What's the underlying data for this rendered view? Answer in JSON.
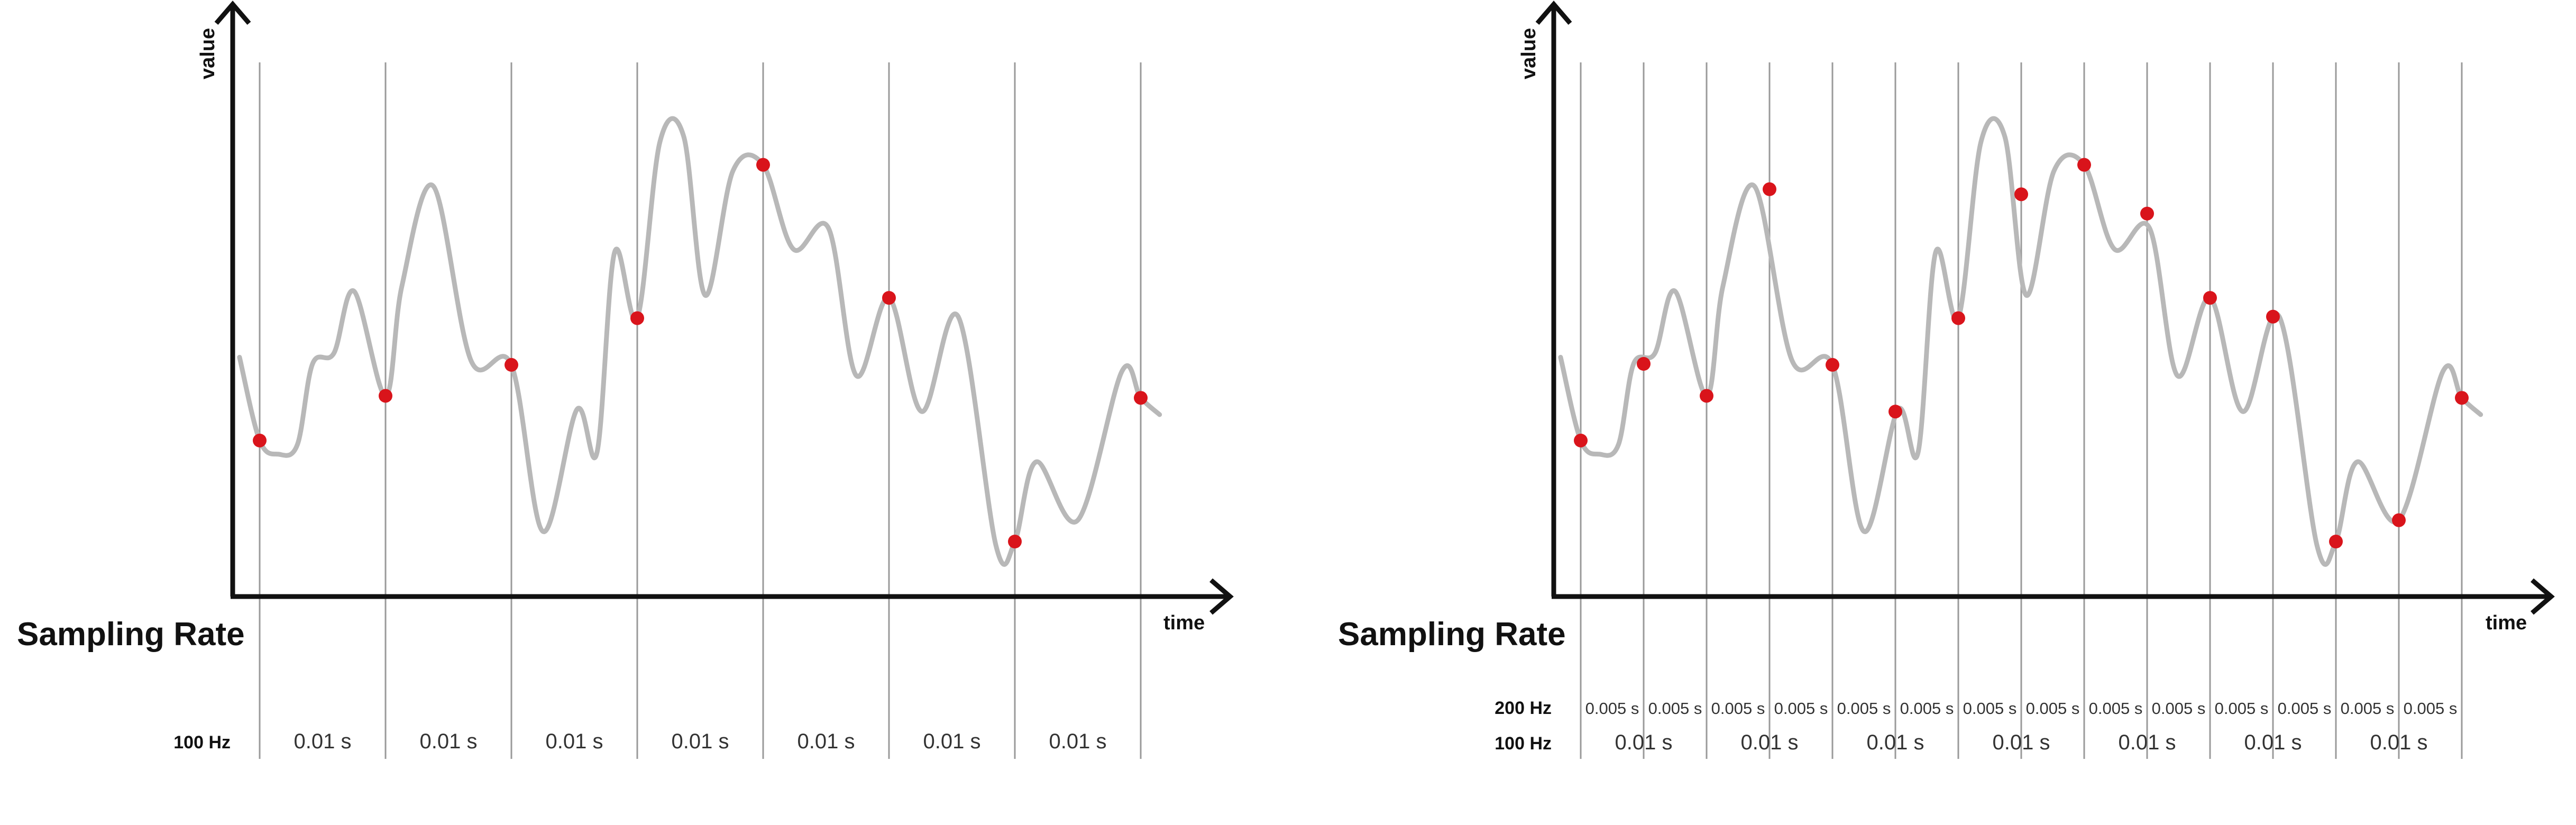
{
  "panels": [
    {
      "id": "left",
      "y_axis_label": "value",
      "x_axis_label": "time",
      "title": "Sampling Rate",
      "rates": [
        {
          "label": "100 Hz",
          "interval_label": "0.01 s",
          "count": 7
        }
      ]
    },
    {
      "id": "right",
      "y_axis_label": "value",
      "x_axis_label": "time",
      "title": "Sampling Rate",
      "rates": [
        {
          "label": "200 Hz",
          "interval_label": "0.005 s",
          "count": 14
        },
        {
          "label": "100 Hz",
          "interval_label": "0.01 s",
          "count": 7
        }
      ]
    }
  ],
  "chart_data": {
    "type": "line",
    "x_unit": "s",
    "signal": {
      "color": "#b8b8b8",
      "points": [
        [
          -0.0016,
          0.463
        ],
        [
          0,
          0.299
        ],
        [
          0.0015,
          0.272
        ],
        [
          0.003,
          0.291
        ],
        [
          0.0042,
          0.45
        ],
        [
          0.0059,
          0.471
        ],
        [
          0.0075,
          0.593
        ],
        [
          0.01,
          0.387
        ],
        [
          0.0113,
          0.603
        ],
        [
          0.0138,
          0.8
        ],
        [
          0.0168,
          0.456
        ],
        [
          0.02,
          0.448
        ],
        [
          0.0225,
          0.12
        ],
        [
          0.0252,
          0.36
        ],
        [
          0.0268,
          0.275
        ],
        [
          0.0282,
          0.67
        ],
        [
          0.03,
          0.54
        ],
        [
          0.0318,
          0.887
        ],
        [
          0.0337,
          0.897
        ],
        [
          0.0354,
          0.585
        ],
        [
          0.0376,
          0.83
        ],
        [
          0.04,
          0.842
        ],
        [
          0.0424,
          0.676
        ],
        [
          0.0452,
          0.717
        ],
        [
          0.0474,
          0.427
        ],
        [
          0.05,
          0.58
        ],
        [
          0.0526,
          0.356
        ],
        [
          0.0555,
          0.543
        ],
        [
          0.0585,
          0.092
        ],
        [
          0.06,
          0.1
        ],
        [
          0.0617,
          0.257
        ],
        [
          0.065,
          0.142
        ],
        [
          0.0685,
          0.435
        ],
        [
          0.07,
          0.383
        ],
        [
          0.0715,
          0.35
        ]
      ]
    },
    "samples": [
      {
        "rate": "100 Hz",
        "x": [
          0,
          0.01,
          0.02,
          0.03,
          0.04,
          0.05,
          0.06,
          0.07
        ],
        "y": [
          0.299,
          0.387,
          0.448,
          0.54,
          0.842,
          0.58,
          0.1,
          0.383
        ],
        "color": "#d9141b"
      },
      {
        "rate": "200 Hz",
        "x": [
          0,
          0.005,
          0.01,
          0.015,
          0.02,
          0.025,
          0.03,
          0.035,
          0.04,
          0.045,
          0.05,
          0.055,
          0.06,
          0.065,
          0.07
        ],
        "y": [
          0.299,
          0.45,
          0.387,
          0.794,
          0.448,
          0.356,
          0.54,
          0.784,
          0.842,
          0.746,
          0.58,
          0.543,
          0.1,
          0.142,
          0.383
        ],
        "color": "#d9141b"
      }
    ]
  }
}
